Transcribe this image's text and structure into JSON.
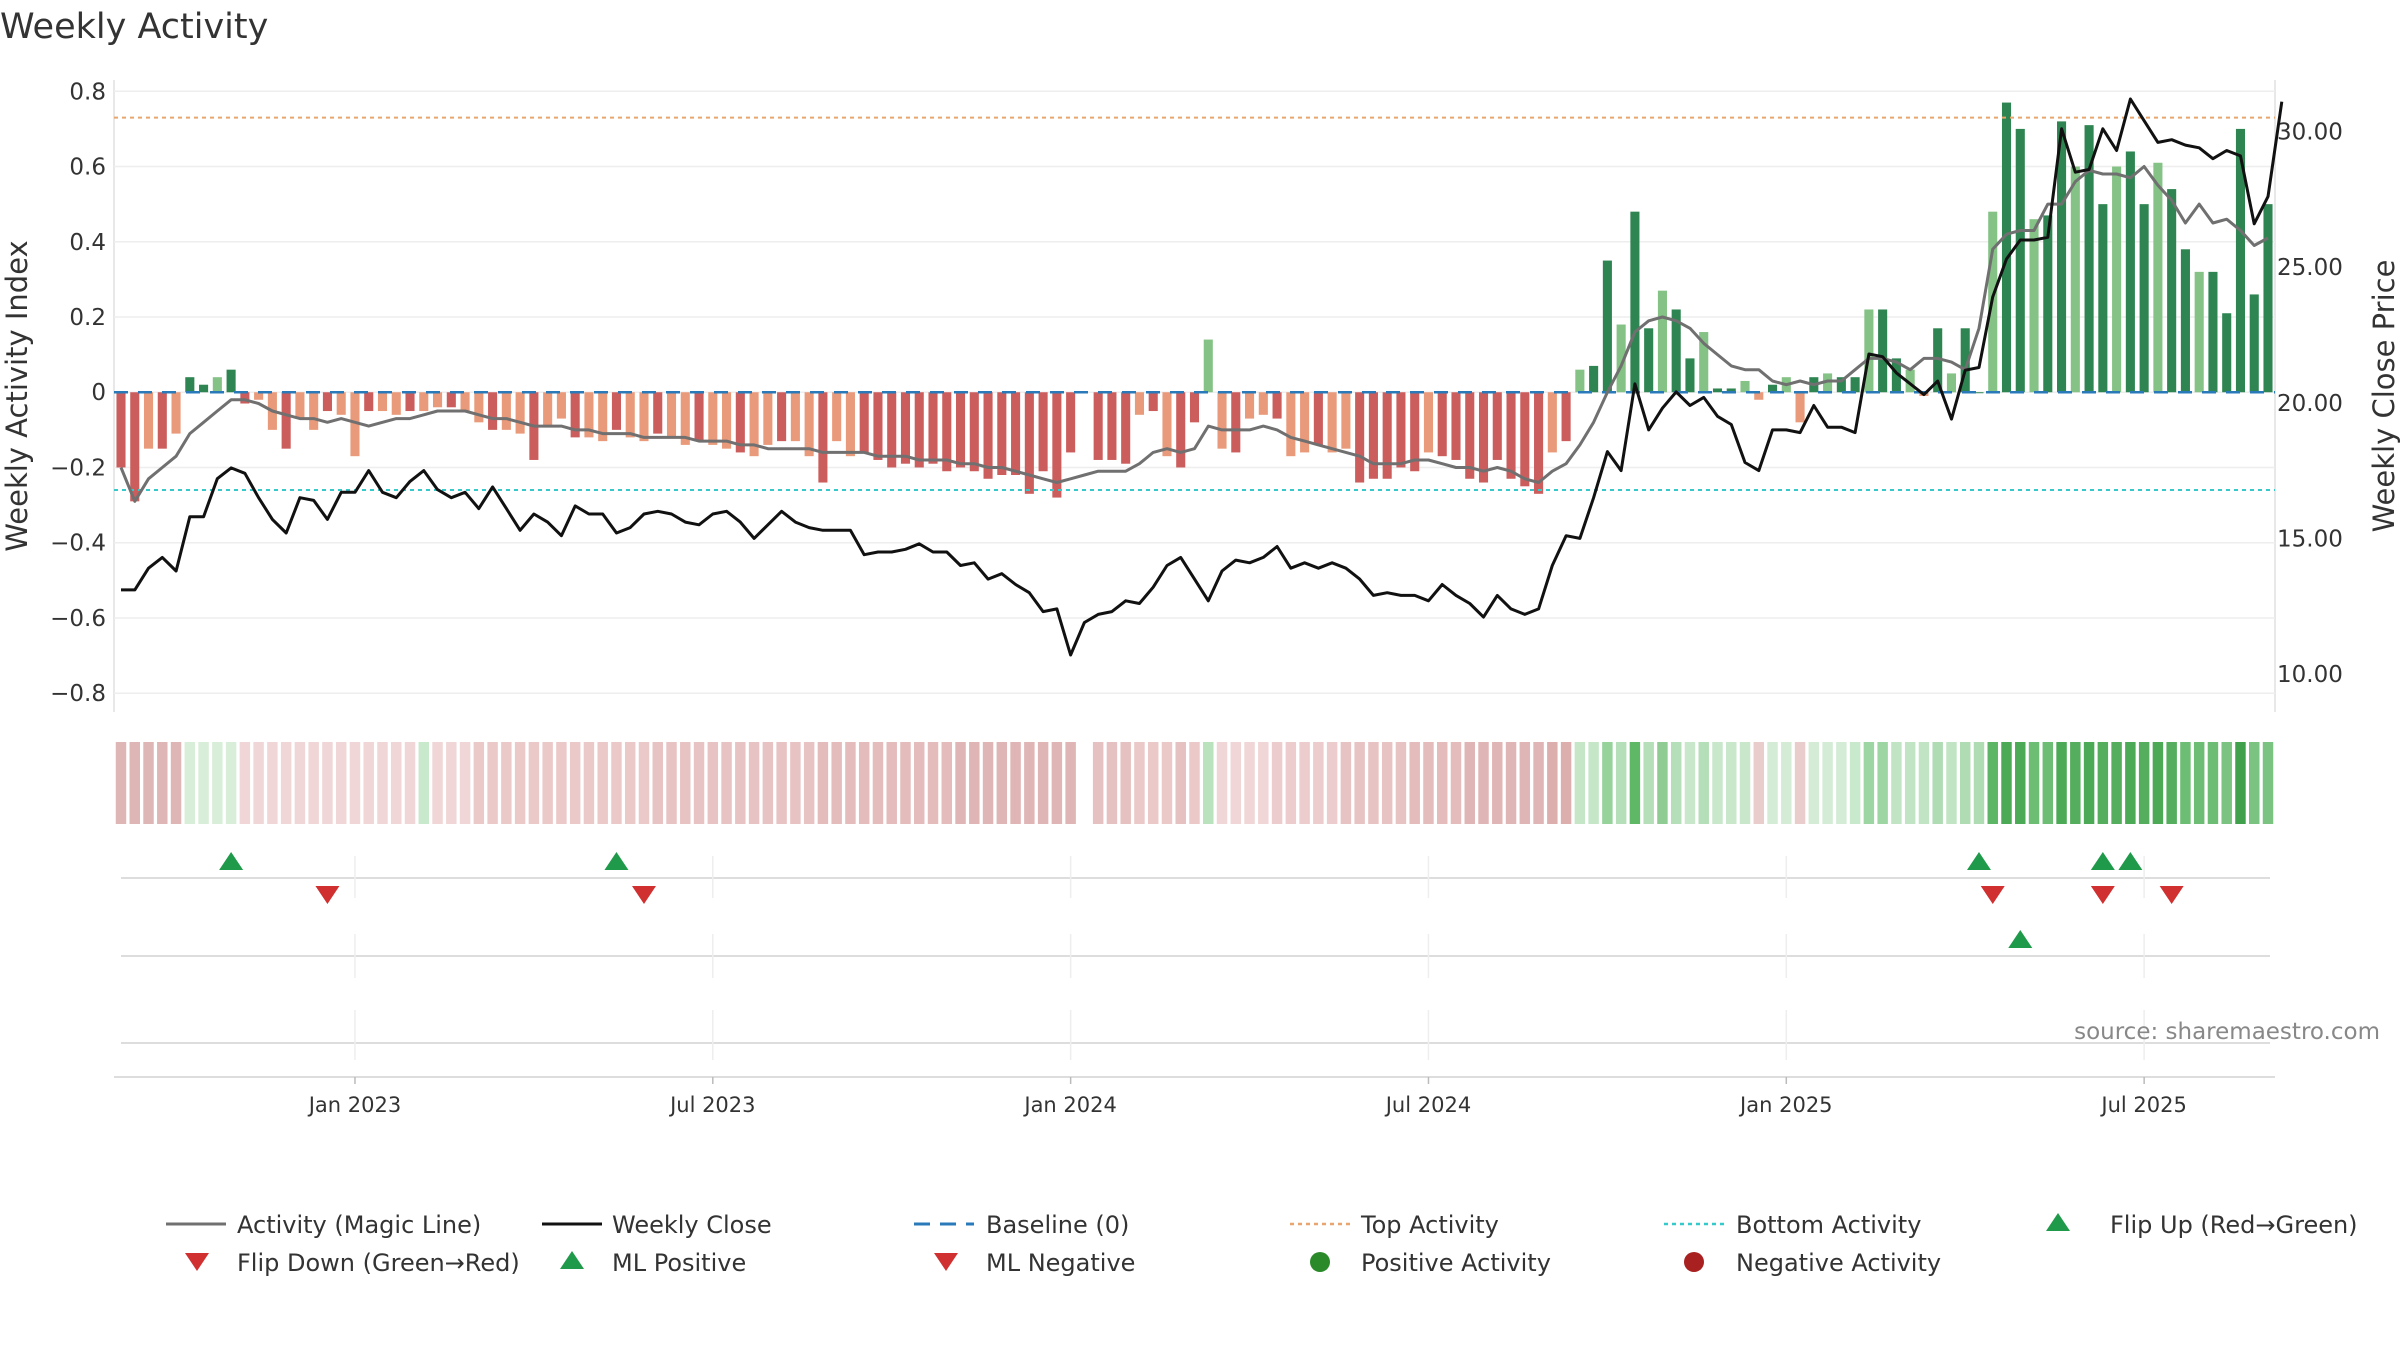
{
  "chart_data": {
    "type": "bar",
    "title": "Weekly Activity",
    "ylabel_left": "Weekly Activity Index",
    "ylabel_right": "Weekly Close Price",
    "ylim_left": [
      -0.85,
      0.83
    ],
    "ylim_right": [
      8.6,
      31.9
    ],
    "left_ticks": [
      "0.8",
      "0.6",
      "0.4",
      "0.2",
      "0",
      "−0.2",
      "−0.4",
      "−0.6",
      "−0.8"
    ],
    "left_tick_values": [
      0.8,
      0.6,
      0.4,
      0.2,
      0,
      -0.2,
      -0.4,
      -0.6,
      -0.8
    ],
    "right_ticks": [
      "30.00",
      "25.00",
      "20.00",
      "15.00",
      "10.00"
    ],
    "right_tick_values": [
      30,
      25,
      20,
      15,
      10
    ],
    "x_ticks": [
      "Jan 2023",
      "Jul 2023",
      "Jan 2024",
      "Jul 2024",
      "Jan 2025",
      "Jul 2025"
    ],
    "x_tick_weeks": [
      17,
      43,
      69,
      95,
      121,
      147
    ],
    "first_week": "2022-09-05",
    "top_activity": 0.73,
    "bottom_activity": -0.26,
    "baseline": 0,
    "activity": [
      -0.2,
      -0.29,
      -0.15,
      -0.15,
      -0.11,
      0.04,
      0.02,
      0.04,
      0.06,
      -0.03,
      -0.02,
      -0.1,
      -0.15,
      -0.07,
      -0.1,
      -0.05,
      -0.06,
      -0.17,
      -0.05,
      -0.05,
      -0.06,
      -0.05,
      -0.05,
      -0.04,
      -0.04,
      -0.05,
      -0.08,
      -0.1,
      -0.1,
      -0.11,
      -0.18,
      -0.09,
      -0.07,
      -0.12,
      -0.12,
      -0.13,
      -0.1,
      -0.12,
      -0.13,
      -0.11,
      -0.12,
      -0.14,
      -0.13,
      -0.14,
      -0.15,
      -0.16,
      -0.17,
      -0.14,
      -0.13,
      -0.13,
      -0.17,
      -0.24,
      -0.13,
      -0.17,
      -0.16,
      -0.18,
      -0.2,
      -0.19,
      -0.2,
      -0.19,
      -0.21,
      -0.2,
      -0.21,
      -0.23,
      -0.22,
      -0.22,
      -0.27,
      -0.21,
      -0.28,
      -0.16,
      null,
      -0.18,
      -0.18,
      -0.19,
      -0.06,
      -0.05,
      -0.17,
      -0.2,
      -0.08,
      0.14,
      -0.15,
      -0.16,
      -0.07,
      -0.06,
      -0.07,
      -0.17,
      -0.16,
      -0.14,
      -0.16,
      -0.15,
      -0.24,
      -0.23,
      -0.23,
      -0.2,
      -0.21,
      -0.16,
      -0.17,
      -0.18,
      -0.23,
      -0.24,
      -0.18,
      -0.23,
      -0.25,
      -0.27,
      -0.16,
      -0.13,
      0.06,
      0.07,
      0.35,
      0.18,
      0.48,
      0.17,
      0.27,
      0.22,
      0.09,
      0.16,
      0.01,
      0.01,
      0.03,
      -0.02,
      0.02,
      0.04,
      -0.08,
      0.04,
      0.05,
      0.04,
      0.04,
      0.22,
      0.22,
      0.09,
      0.06,
      -0.01,
      0.17,
      0.05,
      0.17,
      0.0,
      0.48,
      0.77,
      0.7,
      0.46,
      0.47,
      0.72,
      0.6,
      0.71,
      0.5,
      0.6,
      0.64,
      0.5,
      0.61,
      0.54,
      0.38,
      0.32,
      0.32,
      0.21,
      0.7,
      0.26,
      0.5
    ],
    "magic_line": [
      -0.2,
      -0.29,
      -0.23,
      -0.2,
      -0.17,
      -0.11,
      -0.08,
      -0.05,
      -0.02,
      -0.02,
      -0.03,
      -0.05,
      -0.06,
      -0.07,
      -0.07,
      -0.08,
      -0.07,
      -0.08,
      -0.09,
      -0.08,
      -0.07,
      -0.07,
      -0.06,
      -0.05,
      -0.05,
      -0.05,
      -0.06,
      -0.07,
      -0.07,
      -0.08,
      -0.09,
      -0.09,
      -0.09,
      -0.1,
      -0.1,
      -0.11,
      -0.11,
      -0.11,
      -0.12,
      -0.12,
      -0.12,
      -0.12,
      -0.13,
      -0.13,
      -0.13,
      -0.14,
      -0.14,
      -0.15,
      -0.15,
      -0.15,
      -0.15,
      -0.16,
      -0.16,
      -0.16,
      -0.16,
      -0.17,
      -0.17,
      -0.17,
      -0.18,
      -0.18,
      -0.18,
      -0.19,
      -0.19,
      -0.2,
      -0.2,
      -0.21,
      -0.22,
      -0.23,
      -0.24,
      -0.23,
      -0.22,
      -0.21,
      -0.21,
      -0.21,
      -0.19,
      -0.16,
      -0.15,
      -0.16,
      -0.15,
      -0.09,
      -0.1,
      -0.1,
      -0.1,
      -0.09,
      -0.1,
      -0.12,
      -0.13,
      -0.14,
      -0.15,
      -0.16,
      -0.17,
      -0.19,
      -0.19,
      -0.19,
      -0.18,
      -0.18,
      -0.19,
      -0.2,
      -0.2,
      -0.21,
      -0.2,
      -0.21,
      -0.23,
      -0.24,
      -0.21,
      -0.19,
      -0.14,
      -0.08,
      0.0,
      0.07,
      0.16,
      0.19,
      0.2,
      0.19,
      0.17,
      0.13,
      0.1,
      0.07,
      0.06,
      0.06,
      0.03,
      0.02,
      0.03,
      0.02,
      0.03,
      0.03,
      0.06,
      0.09,
      0.09,
      0.08,
      0.06,
      0.09,
      0.09,
      0.08,
      0.06,
      0.17,
      0.38,
      0.42,
      0.43,
      0.43,
      0.5,
      0.5,
      0.56,
      0.59,
      0.58,
      0.58,
      0.57,
      0.6,
      0.55,
      0.51,
      0.45,
      0.5,
      0.45,
      0.46,
      0.43,
      0.39,
      0.41
    ],
    "weekly_close": [
      13.1,
      13.1,
      13.9,
      14.3,
      13.8,
      15.8,
      15.8,
      17.2,
      17.6,
      17.4,
      16.5,
      15.7,
      15.2,
      16.5,
      16.4,
      15.7,
      16.7,
      16.7,
      17.5,
      16.7,
      16.5,
      17.1,
      17.5,
      16.8,
      16.5,
      16.7,
      16.1,
      16.9,
      16.1,
      15.3,
      15.9,
      15.6,
      15.1,
      16.2,
      15.9,
      15.9,
      15.2,
      15.4,
      15.9,
      16.0,
      15.9,
      15.6,
      15.5,
      15.9,
      16.0,
      15.6,
      15.0,
      15.5,
      16.0,
      15.6,
      15.4,
      15.3,
      15.3,
      15.3,
      14.4,
      14.5,
      14.5,
      14.6,
      14.8,
      14.5,
      14.5,
      14.0,
      14.1,
      13.5,
      13.7,
      13.3,
      13.0,
      12.3,
      12.4,
      10.7,
      11.9,
      12.2,
      12.3,
      12.7,
      12.6,
      13.2,
      14.0,
      14.3,
      13.5,
      12.7,
      13.8,
      14.2,
      14.1,
      14.3,
      14.7,
      13.9,
      14.1,
      13.9,
      14.1,
      13.9,
      13.5,
      12.9,
      13.0,
      12.9,
      12.9,
      12.7,
      13.3,
      12.9,
      12.6,
      12.1,
      12.9,
      12.4,
      12.2,
      12.4,
      14.0,
      15.1,
      15.0,
      16.5,
      18.2,
      17.5,
      20.7,
      19.0,
      19.8,
      20.4,
      19.9,
      20.2,
      19.5,
      19.2,
      17.8,
      17.5,
      19.0,
      19.0,
      18.9,
      19.9,
      19.1,
      19.1,
      18.9,
      21.8,
      21.7,
      21.1,
      20.7,
      20.3,
      20.8,
      19.4,
      21.2,
      21.3,
      23.9,
      25.3,
      26.0,
      26.0,
      26.1,
      30.1,
      28.5,
      28.6,
      30.1,
      29.3,
      31.2,
      30.4,
      29.6,
      29.7,
      29.5,
      29.4,
      29.0,
      29.3,
      29.1,
      26.6,
      27.6,
      31.1
    ],
    "strip_colors": [
      "#dfb6b6",
      "#dfb6b6",
      "#dfb6b6",
      "#dfb6b6",
      "#dfb6b6",
      "#d8eed9",
      "#d8eed9",
      "#d8eed9",
      "#d8eed9",
      "#f0d6d6",
      "#f0d6d6",
      "#f0d6d6",
      "#f0d6d6",
      "#f0d6d6",
      "#f0d6d6",
      "#f0d6d6",
      "#f0d6d6",
      "#f0d6d6",
      "#f0d6d6",
      "#f0d6d6",
      "#f0d6d6",
      "#f0d6d6",
      "#c8e9cb",
      "#f0d6d6",
      "#f0d6d6",
      "#f0d6d6",
      "#ecc9c9",
      "#ecc9c9",
      "#ecc9c9",
      "#ecc9c9",
      "#ecc9c9",
      "#ecc9c9",
      "#ecc9c9",
      "#ecc9c9",
      "#ecc9c9",
      "#ecc9c9",
      "#ecc9c9",
      "#ecc9c9",
      "#ecc9c9",
      "#e8c3c3",
      "#e8c3c3",
      "#e8c3c3",
      "#e8c3c3",
      "#e8c3c3",
      "#e8c3c3",
      "#e8c3c3",
      "#e8c3c3",
      "#e8c3c3",
      "#e8c3c3",
      "#e8c3c3",
      "#e8c3c3",
      "#e4bcbc",
      "#e4bcbc",
      "#e4bcbc",
      "#e4bcbc",
      "#e4bcbc",
      "#e4bcbc",
      "#e4bcbc",
      "#e4bcbc",
      "#e4bcbc",
      "#e4bcbc",
      "#e0b5b5",
      "#e0b5b5",
      "#e0b5b5",
      "#e0b5b5",
      "#e0b5b5",
      "#e0b5b5",
      "#e0b5b5",
      "#e0b5b5",
      "#e0b5b5",
      null,
      "#e6c1c1",
      "#e6c1c1",
      "#e6c1c1",
      "#ecc9c9",
      "#ecc9c9",
      "#ecc9c9",
      "#e6c1c1",
      "#ecc9c9",
      "#b9e2bd",
      "#f0d6d6",
      "#f0d6d6",
      "#f0d6d6",
      "#f0d6d6",
      "#eccccc",
      "#eccccc",
      "#eccccc",
      "#eccccc",
      "#eccccc",
      "#e8c3c3",
      "#e8c3c3",
      "#e8c3c3",
      "#e8c3c3",
      "#e8c3c3",
      "#e4bcbc",
      "#e4bcbc",
      "#e4bcbc",
      "#e4bcbc",
      "#e0b5b5",
      "#e0b5b5",
      "#e0b5b5",
      "#e0b5b5",
      "#e0b5b5",
      "#e0b5b5",
      "#dcaeae",
      "#dcaeae",
      "#c5e7c8",
      "#c5e7c8",
      "#97d29b",
      "#b4dfb8",
      "#5eb866",
      "#b4dfb8",
      "#8fcc94",
      "#b4dfb8",
      "#c8e7cb",
      "#b4dfb8",
      "#c8e7cb",
      "#c8e7cb",
      "#c8e7cb",
      "#e9cccc",
      "#d4ecd6",
      "#d4ecd6",
      "#e9cccc",
      "#d4ecd6",
      "#d4ecd6",
      "#d4ecd6",
      "#c8e9cb",
      "#9dd6a2",
      "#9dd6a2",
      "#c1e5c4",
      "#c1e5c4",
      "#c1e5c4",
      "#b0dcb4",
      "#c1e5c4",
      "#b0dcb4",
      "#b0dcb4",
      "#5db566",
      "#4ca955",
      "#4ca955",
      "#6dbd74",
      "#6dbd74",
      "#4ca955",
      "#55ae5d",
      "#4ca955",
      "#55ae5d",
      "#55ae5d",
      "#4ca955",
      "#55ae5d",
      "#4ca955",
      "#55ae5d",
      "#6dbd74",
      "#6dbd74",
      "#6dbd74",
      "#7ac380",
      "#41a04b",
      "#7ac380",
      "#7ac380"
    ],
    "flip_up_weeks": [
      8,
      36,
      135,
      144,
      146
    ],
    "flip_down_weeks": [
      15,
      38,
      136,
      144,
      149
    ],
    "ml_positive_weeks": [
      138
    ],
    "legend": [
      "Activity (Magic Line)",
      "Weekly Close",
      "Baseline (0)",
      "Top Activity",
      "Bottom Activity",
      "Flip Up (Red→Green)",
      "Flip Down (Green→Red)",
      "ML Positive",
      "ML Negative",
      "Positive Activity",
      "Negative Activity"
    ],
    "source": "source: sharemaestro.com"
  },
  "colors": {
    "green_dark": "#2e8552",
    "green_light": "#84c285",
    "red_dark": "#cc5d5d",
    "red_light": "#e99a7a",
    "magic_line": "#707070",
    "close_line": "#111111",
    "baseline": "#2a7ab9",
    "top": "#e8a56d",
    "bottom": "#35c9cc",
    "marker_up": "#1f9a4a",
    "marker_down": "#d03030",
    "positive_dot": "#2a8a2a",
    "negative_dot": "#a82020"
  }
}
